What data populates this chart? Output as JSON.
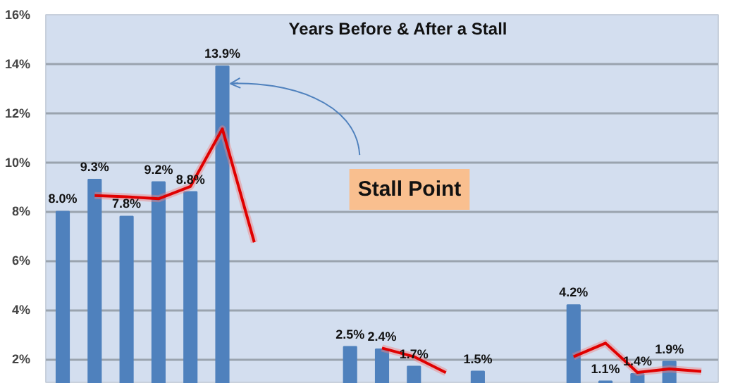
{
  "chart_data": {
    "type": "bar",
    "title": "Years Before & After a Stall",
    "categories": [
      null,
      null,
      null,
      null,
      null,
      null,
      null,
      null,
      null,
      null,
      null,
      null,
      null,
      null,
      null,
      null,
      null,
      null,
      null,
      null,
      null
    ],
    "series": [
      {
        "color": "#4f81bd",
        "values": [
          8.0,
          9.3,
          7.8,
          9.2,
          8.8,
          13.9,
          null,
          null,
          null,
          2.5,
          2.4,
          1.7,
          null,
          1.5,
          null,
          null,
          4.2,
          1.1,
          1.4,
          1.9,
          null
        ],
        "value_labels": [
          "8.0%",
          "9.3%",
          "7.8%",
          "9.2%",
          "8.8%",
          "13.9%",
          null,
          null,
          null,
          "2.5%",
          "2.4%",
          "1.7%",
          null,
          "1.5%",
          null,
          null,
          "4.2%",
          "1.1%",
          "1.4%",
          "1.9%",
          null
        ]
      },
      {
        "type": "line",
        "color": "#e00000",
        "values": [
          null,
          8.65,
          8.6,
          8.52,
          9.02,
          11.36,
          6.75,
          null,
          null,
          null,
          2.45,
          2.1,
          1.45,
          null,
          null,
          null,
          2.1,
          2.65,
          1.46,
          1.6,
          1.5
        ]
      }
    ],
    "ylim": [
      1,
      16
    ],
    "yticks": [
      {
        "value": 2,
        "label": "2%"
      },
      {
        "value": 4,
        "label": "4%"
      },
      {
        "value": 6,
        "label": "6%"
      },
      {
        "value": 8,
        "label": "8%"
      },
      {
        "value": 10,
        "label": "10%"
      },
      {
        "value": 12,
        "label": "12%"
      },
      {
        "value": 14,
        "label": "14%"
      },
      {
        "value": 16,
        "label": "16%"
      }
    ],
    "grid": "y",
    "tick_labels": "y",
    "annotations": [
      "Stall Point"
    ]
  }
}
